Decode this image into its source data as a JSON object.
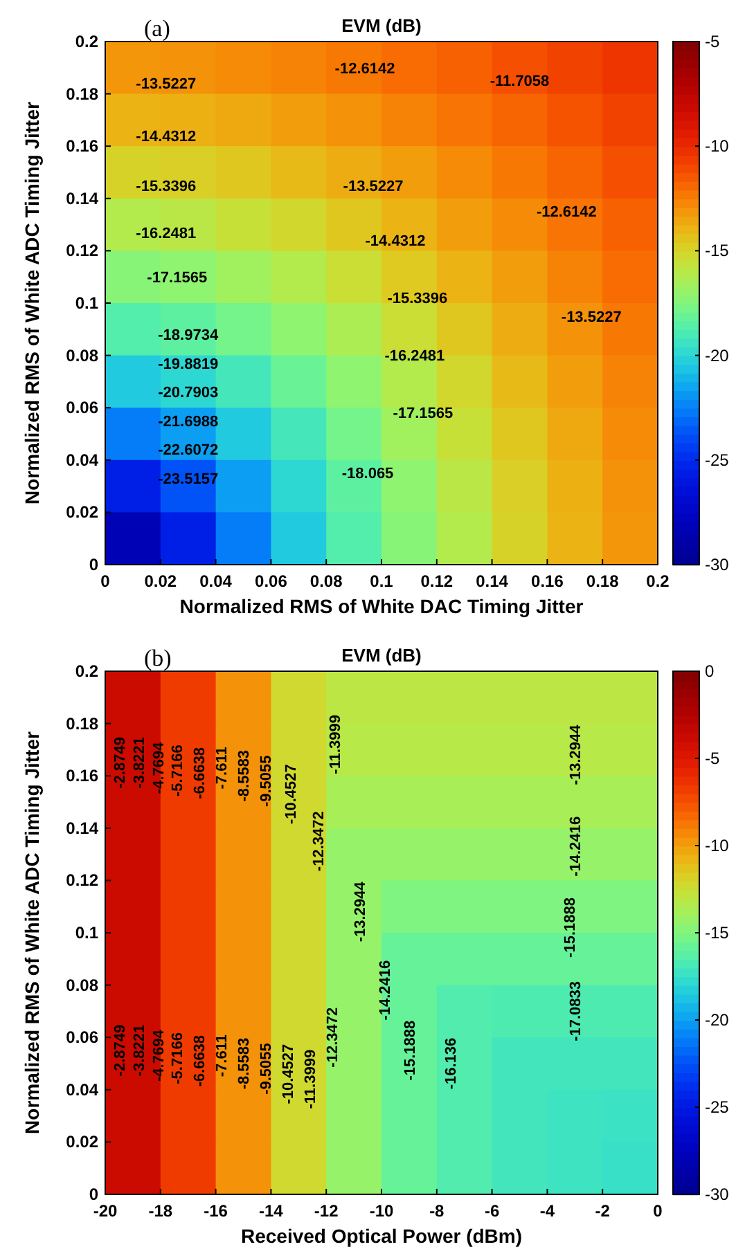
{
  "chart_data": [
    {
      "type": "heatmap",
      "title": "EVM (dB)",
      "xlabel": "Normalized RMS of White DAC Timing Jitter",
      "ylabel": "Normalized RMS of White ADC Timing Jitter",
      "x": [
        0.01,
        0.03,
        0.05,
        0.07,
        0.09,
        0.11,
        0.13,
        0.15,
        0.17,
        0.19
      ],
      "y": [
        0.19,
        0.17,
        0.15,
        0.13,
        0.11,
        0.09,
        0.07,
        0.05,
        0.03,
        0.01
      ],
      "xlim": [
        0,
        0.2
      ],
      "xticks": [
        0,
        0.02,
        0.04,
        0.06,
        0.08,
        0.1,
        0.12,
        0.14,
        0.16,
        0.18,
        0.2
      ],
      "ylim": [
        0,
        0.2
      ],
      "yticks": [
        0,
        0.02,
        0.04,
        0.06,
        0.08,
        0.1,
        0.12,
        0.14,
        0.16,
        0.18,
        0.2
      ],
      "clim": [
        -30,
        -5
      ],
      "cticks": [
        -30,
        -25,
        -20,
        -15,
        -10,
        -5
      ],
      "cells": [
        [
          -13.1,
          -13,
          -12.8,
          -12.6,
          -12.3,
          -12,
          -11.7,
          -11.2,
          -10.8,
          -10.4
        ],
        [
          -13.9,
          -13.8,
          -13.6,
          -13.3,
          -13,
          -12.6,
          -12.2,
          -11.8,
          -11.3,
          -10.8
        ],
        [
          -14.9,
          -14.8,
          -14.5,
          -14.1,
          -13.7,
          -13.3,
          -12.8,
          -12.3,
          -11.8,
          -11.2
        ],
        [
          -16.1,
          -15.9,
          -15.5,
          -15.1,
          -14.5,
          -13.9,
          -13.3,
          -12.8,
          -12.2,
          -11.7
        ],
        [
          -17.3,
          -17.1,
          -16.6,
          -16.1,
          -15.4,
          -14.6,
          -13.9,
          -13.3,
          -12.6,
          -12
        ],
        [
          -18.7,
          -18.4,
          -17.8,
          -17.1,
          -16.3,
          -15.4,
          -14.5,
          -13.7,
          -13,
          -12.3
        ],
        [
          -20.4,
          -19.9,
          -19.1,
          -18.1,
          -17.1,
          -16.1,
          -15.1,
          -14.1,
          -13.3,
          -12.6
        ],
        [
          -22.6,
          -21.7,
          -20.4,
          -19.1,
          -17.8,
          -16.6,
          -15.5,
          -14.5,
          -13.6,
          -12.8
        ],
        [
          -25.5,
          -23.7,
          -21.7,
          -19.9,
          -18.4,
          -17.1,
          -15.9,
          -14.8,
          -13.8,
          -13
        ],
        [
          -28.2,
          -25.5,
          -22.6,
          -20.4,
          -18.7,
          -17.3,
          -16.1,
          -14.9,
          -13.9,
          -13.1
        ]
      ],
      "annotations": [
        "(a)",
        "-13.5227",
        "-12.6142",
        "-11.7058",
        "-14.4312",
        "-15.3396",
        "-16.2481",
        "-17.1565",
        "-18.9734",
        "-19.8819",
        "-20.7903",
        "-21.6988",
        "-22.6072",
        "-23.5157",
        "-13.5227",
        "-14.4312",
        "-15.3396",
        "-16.2481",
        "-17.1565",
        "-18.065",
        "-12.6142",
        "-13.5227"
      ]
    },
    {
      "type": "heatmap",
      "title": "EVM (dB)",
      "xlabel": "Received Optical Power (dBm)",
      "ylabel": "Normalized RMS of White ADC Timing Jitter",
      "x": [
        -19,
        -17,
        -15,
        -13,
        -11,
        -9,
        -7,
        -5,
        -3,
        -1
      ],
      "y": [
        0.19,
        0.17,
        0.15,
        0.13,
        0.11,
        0.09,
        0.07,
        0.05,
        0.03,
        0.01
      ],
      "xlim": [
        -20,
        0
      ],
      "xticks": [
        -20,
        -18,
        -16,
        -14,
        -12,
        -10,
        -8,
        -6,
        -4,
        -2,
        0
      ],
      "ylim": [
        0,
        0.2
      ],
      "yticks": [
        0,
        0.02,
        0.04,
        0.06,
        0.08,
        0.1,
        0.12,
        0.14,
        0.16,
        0.18,
        0.2
      ],
      "clim": [
        -30,
        0
      ],
      "cticks": [
        -30,
        -25,
        -20,
        -15,
        -10,
        -5,
        0
      ],
      "cells": [
        [
          -3.8,
          -6.7,
          -9.6,
          -12.2,
          -13,
          -13,
          -13,
          -13,
          -13,
          -13
        ],
        [
          -3.8,
          -6.7,
          -9.6,
          -12.2,
          -13.2,
          -13.2,
          -13.2,
          -13.2,
          -13.2,
          -13.2
        ],
        [
          -3.8,
          -6.7,
          -9.6,
          -12.2,
          -13.7,
          -13.7,
          -13.7,
          -13.7,
          -13.7,
          -13.7
        ],
        [
          -3.8,
          -6.7,
          -9.6,
          -12.2,
          -14.3,
          -14.3,
          -14.3,
          -14.3,
          -14.3,
          -14.3
        ],
        [
          -3.8,
          -6.7,
          -9.6,
          -12.2,
          -14.3,
          -15,
          -15,
          -15,
          -15,
          -15
        ],
        [
          -3.8,
          -6.7,
          -9.6,
          -12.2,
          -14.3,
          -15.8,
          -15.8,
          -15.8,
          -15.8,
          -15.8
        ],
        [
          -3.8,
          -6.7,
          -9.6,
          -12.2,
          -14.3,
          -15.8,
          -16.5,
          -16.6,
          -16.6,
          -16.6
        ],
        [
          -3.8,
          -6.7,
          -9.6,
          -12.2,
          -14.3,
          -15.8,
          -16.5,
          -17,
          -17,
          -17
        ],
        [
          -3.8,
          -6.7,
          -9.6,
          -12.2,
          -14.3,
          -15.8,
          -16.5,
          -17,
          -17.2,
          -17.3
        ],
        [
          -3.8,
          -6.7,
          -9.6,
          -12.2,
          -14.3,
          -15.8,
          -16.5,
          -17,
          -17.2,
          -17.4
        ]
      ],
      "annotations": [
        "(b)",
        "-2.8749",
        "-3.8221",
        "-4.7694",
        "-5.7166",
        "-6.6638",
        "-7.611",
        "-8.5583",
        "-9.5055",
        "-10.4527",
        "-11.3999",
        "-12.3472",
        "-13.2944",
        "-14.2416",
        "-15.1888",
        "-16.136",
        "-2.8749",
        "-3.8221",
        "-4.7694",
        "-5.7166",
        "-6.6638",
        "-7.611",
        "-8.5583",
        "-9.5055",
        "-10.4527",
        "-11.3999",
        "-12.3472",
        "-13.2944",
        "-14.2416",
        "-15.1888",
        "-17.0833"
      ]
    }
  ]
}
